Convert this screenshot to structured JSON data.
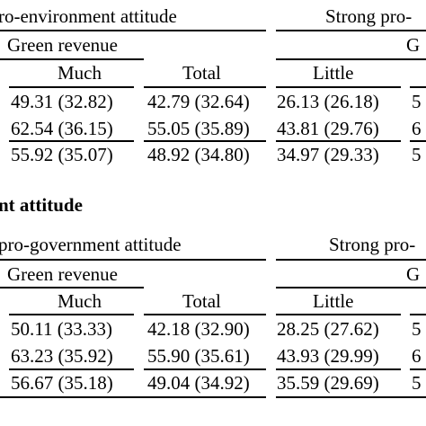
{
  "panel_a": {
    "headers": {
      "weak_attitude": "ro-environment attitude",
      "strong_attitude": "Strong pro-",
      "green_revenue": "Green revenue",
      "green_revenue_right": "G",
      "col_much": "Much",
      "col_total": "Total",
      "col_little": "Little"
    },
    "rows": [
      {
        "much": "49.31 (32.82)",
        "total": "42.79 (32.64)",
        "little": "26.13 (26.18)",
        "next": "5"
      },
      {
        "much": "62.54 (36.15)",
        "total": "55.05 (35.89)",
        "little": "43.81 (29.76)",
        "next": "6"
      },
      {
        "much": "55.92 (35.07)",
        "total": "48.92 (34.80)",
        "little": "34.97 (29.33)",
        "next": "5"
      }
    ]
  },
  "panel_b": {
    "section_title": "nt attitude",
    "headers": {
      "weak_attitude": "pro-government attitude",
      "strong_attitude": "Strong pro-",
      "green_revenue": "Green revenue",
      "green_revenue_right": "G",
      "col_much": "Much",
      "col_total": "Total",
      "col_little": "Little"
    },
    "rows": [
      {
        "much": "50.11 (33.33)",
        "total": "42.18 (32.90)",
        "little": "28.25 (27.62)",
        "next": "5"
      },
      {
        "much": "63.23 (35.92)",
        "total": "55.90 (35.61)",
        "little": "43.93 (29.99)",
        "next": "6"
      },
      {
        "much": "56.67 (35.18)",
        "total": "49.04 (34.92)",
        "little": "35.59 (29.69)",
        "next": "5"
      }
    ]
  }
}
